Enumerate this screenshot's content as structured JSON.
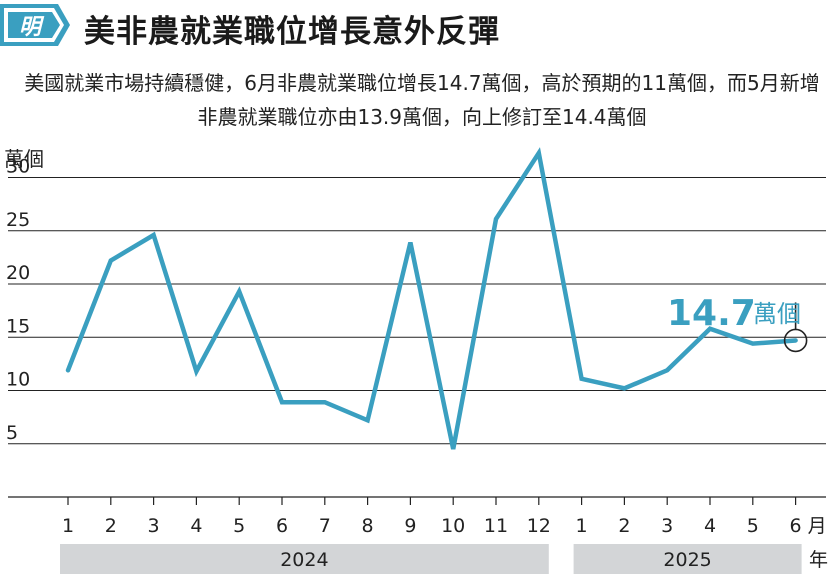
{
  "header": {
    "logo_text": "明",
    "title": "美非農就業職位增長意外反彈"
  },
  "subtitle": "美國就業市場持續穩健，6月非農就業職位增長14.7萬個，高於預期的11萬個，而5月新增非農就業職位亦由13.9萬個，向上修訂至14.4萬個",
  "colors": {
    "line": "#3a9fc0",
    "grid": "#222222",
    "year_band": "#d3d5d7",
    "logo_blue": "#3a9fc0"
  },
  "chart_data": {
    "type": "line",
    "ylabel": "萬個",
    "ylim": [
      0,
      32.5
    ],
    "yticks": [
      5,
      10,
      15,
      20,
      25,
      30
    ],
    "categories": [
      "1",
      "2",
      "3",
      "4",
      "5",
      "6",
      "7",
      "8",
      "9",
      "10",
      "11",
      "12",
      "1",
      "2",
      "3",
      "4",
      "5",
      "6"
    ],
    "month_suffix": "月",
    "year_suffix": "年",
    "years": [
      {
        "label": "2024",
        "start_index": 0,
        "end_index": 11
      },
      {
        "label": "2025",
        "start_index": 12,
        "end_index": 17
      }
    ],
    "series": [
      {
        "values": [
          11.9,
          22.2,
          24.6,
          11.8,
          19.3,
          8.9,
          8.9,
          7.2,
          23.9,
          4.5,
          26.1,
          32.3,
          11.1,
          10.2,
          11.9,
          15.8,
          14.4,
          14.7
        ]
      }
    ],
    "annotation": {
      "index": 17,
      "value_text": "14.7",
      "unit_text": "萬個"
    }
  }
}
